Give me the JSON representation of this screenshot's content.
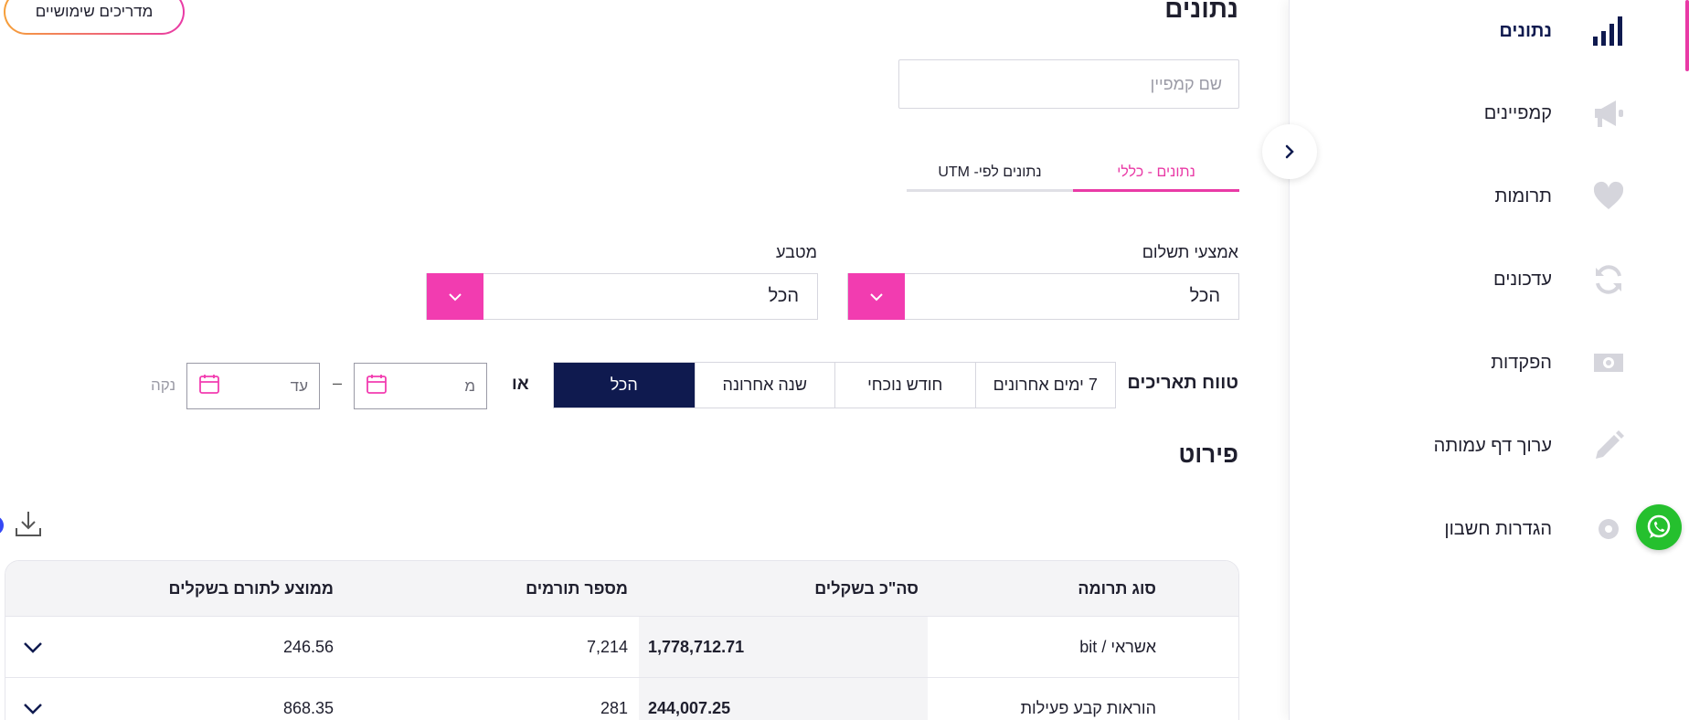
{
  "page": {
    "title": "נתונים",
    "guides_button": "מדריכים שימושיים"
  },
  "sidebar": {
    "items": [
      {
        "label": "נתונים",
        "icon": "bar-chart-icon",
        "active": true
      },
      {
        "label": "קמפיינים",
        "icon": "megaphone-icon"
      },
      {
        "label": "תרומות",
        "icon": "heart-icon"
      },
      {
        "label": "עדכונים",
        "icon": "refresh-icon"
      },
      {
        "label": "הפקדות",
        "icon": "cash-icon"
      },
      {
        "label": "ערוך דף עמותה",
        "icon": "pencil-icon"
      },
      {
        "label": "הגדרות חשבון",
        "icon": "gear-icon"
      }
    ]
  },
  "filters": {
    "campaign_placeholder": "שם קמפיין",
    "tabs": [
      {
        "label": "נתונים - כללי",
        "active": true
      },
      {
        "label": "נתונים לפי- UTM"
      }
    ],
    "payment_method": {
      "label": "אמצעי תשלום",
      "value": "הכל"
    },
    "currency": {
      "label": "מטבע",
      "value": "הכל"
    },
    "date_range": {
      "label": "טווח תאריכים",
      "options": [
        "7 ימים אחרונים",
        "חודש נוכחי",
        "שנה אחרונה",
        "הכל"
      ],
      "selected": "הכל",
      "or_label": "או",
      "from_placeholder": "מ",
      "to_placeholder": "עד",
      "clear_label": "נקה"
    }
  },
  "breakdown": {
    "title": "פירוט",
    "columns": [
      "סוג תרומה",
      "סה\"כ בשקלים",
      "מספר תורמים",
      "ממוצע לתורם בשקלים"
    ],
    "rows": [
      {
        "type": "אשראי / bit",
        "total": "1,778,712.71",
        "donors": "7,214",
        "avg": "246.56"
      },
      {
        "type": "הוראות קבע פעילות",
        "total": "244,007.25",
        "donors": "281",
        "avg": "868.35"
      }
    ]
  },
  "colors": {
    "accent": "#f23cb0",
    "navy": "#0f1a4f",
    "whatsapp": "#25c02e"
  }
}
